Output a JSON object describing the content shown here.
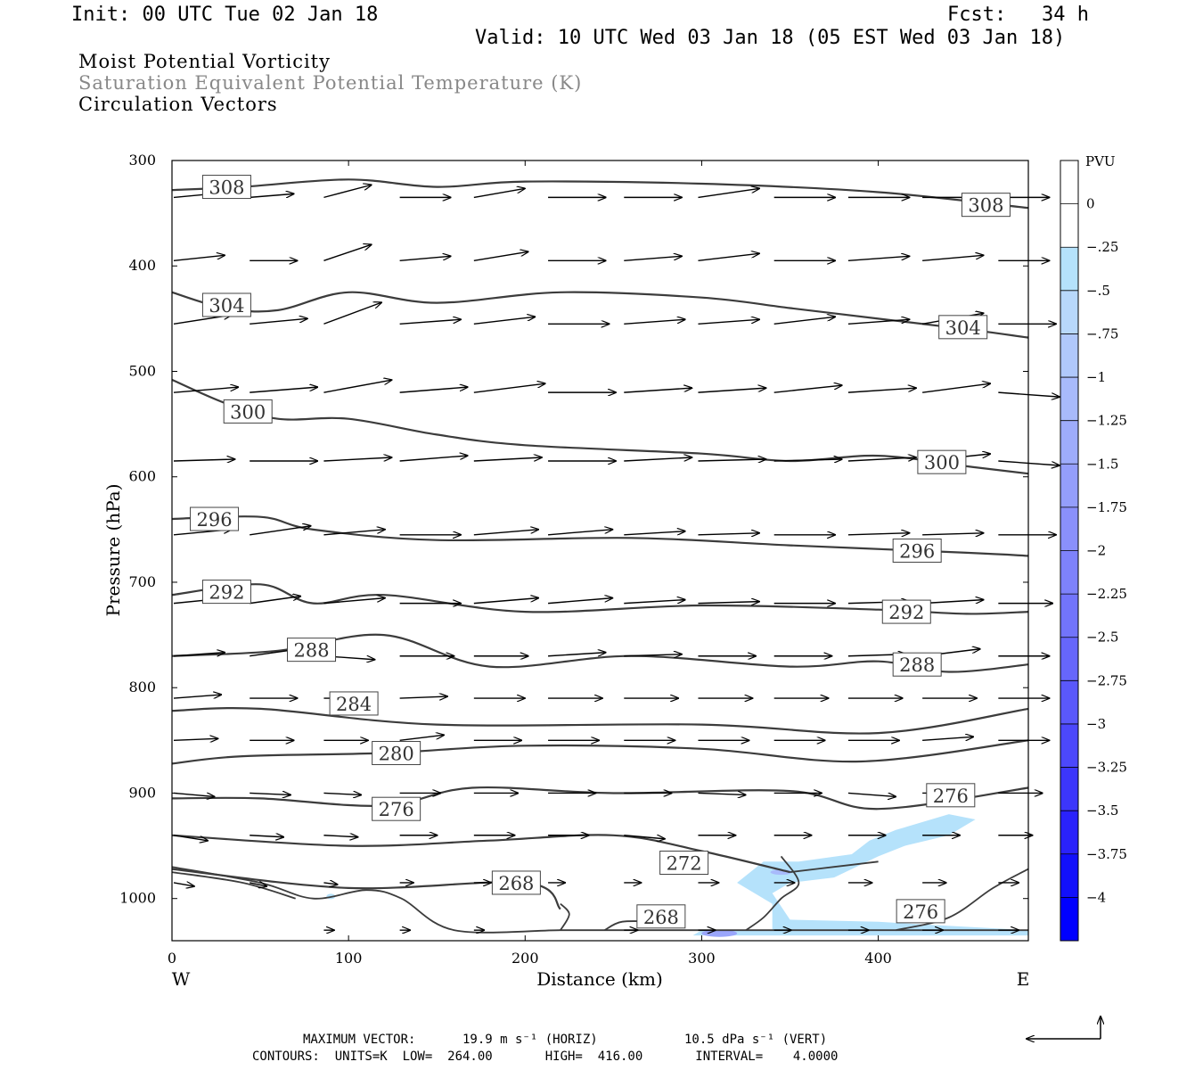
{
  "header": {
    "init": "Init: 00 UTC Tue 02 Jan 18",
    "fcst": "Fcst:   34 h",
    "valid": "Valid: 10 UTC Wed 03 Jan 18 (05 EST Wed 03 Jan 18)",
    "field1": "Moist Potential Vorticity",
    "field2": "Saturation Equivalent Potential Temperature (K)",
    "field3": "Circulation Vectors"
  },
  "footer": {
    "max_vector_label": "MAXIMUM VECTOR:",
    "horiz": "19.9 m s⁻¹ (HORIZ)",
    "vert": "10.5 dPa s⁻¹ (VERT)",
    "contours": "CONTOURS:  UNITS=K  LOW=  264.00       HIGH=  416.00       INTERVAL=    4.0000"
  },
  "colors": {
    "contour": "#3c3c3c",
    "pv_light": "#b5e2fb",
    "pv_dark": "#0000ff"
  },
  "chart_data": {
    "type": "cross-section",
    "xlabel": "Distance (km)",
    "ylabel": "Pressure (hPa)",
    "x_left_label": "W",
    "x_right_label": "E",
    "xlim": [
      0,
      485
    ],
    "ylim": [
      1040,
      300
    ],
    "x_ticks": [
      0,
      100,
      200,
      300,
      400
    ],
    "y_ticks": [
      300,
      400,
      500,
      600,
      700,
      800,
      900,
      1000
    ],
    "colorbar": {
      "title": "PVU",
      "levels": [
        "0",
        "-.25",
        "-.5",
        "-.75",
        "-1",
        "-1.25",
        "-1.5",
        "-1.75",
        "-2",
        "-2.25",
        "-2.5",
        "-2.75",
        "-3",
        "-3.25",
        "-3.5",
        "-3.75",
        "-4"
      ],
      "colors": [
        "#ffffff",
        "#ffffff",
        "#b5e2fb",
        "#b8d8fb",
        "#b0c8fb",
        "#a8bafb",
        "#9eacfb",
        "#949efb",
        "#8a90fb",
        "#7e82fb",
        "#7274fb",
        "#6666fb",
        "#5a58fb",
        "#4c48fb",
        "#3c36fb",
        "#2a22fb",
        "#1210fb",
        "#0000ff"
      ]
    },
    "contours": [
      {
        "value": 308,
        "label": "308",
        "points": [
          [
            0,
            328
          ],
          [
            40,
            325
          ],
          [
            100,
            318
          ],
          [
            150,
            325
          ],
          [
            200,
            320
          ],
          [
            300,
            322
          ],
          [
            400,
            330
          ],
          [
            485,
            345
          ]
        ],
        "labels_at": [
          [
            31,
            325
          ],
          [
            461,
            342
          ]
        ]
      },
      {
        "value": 304,
        "label": "304",
        "points": [
          [
            0,
            425
          ],
          [
            30,
            440
          ],
          [
            60,
            442
          ],
          [
            100,
            425
          ],
          [
            150,
            435
          ],
          [
            220,
            425
          ],
          [
            300,
            430
          ],
          [
            350,
            440
          ],
          [
            400,
            450
          ],
          [
            450,
            460
          ],
          [
            485,
            468
          ]
        ],
        "labels_at": [
          [
            31,
            437
          ],
          [
            448,
            458
          ]
        ]
      },
      {
        "value": 300,
        "label": "300",
        "points": [
          [
            0,
            508
          ],
          [
            30,
            530
          ],
          [
            60,
            545
          ],
          [
            100,
            545
          ],
          [
            150,
            560
          ],
          [
            200,
            570
          ],
          [
            300,
            578
          ],
          [
            350,
            585
          ],
          [
            400,
            580
          ],
          [
            450,
            590
          ],
          [
            485,
            597
          ]
        ],
        "labels_at": [
          [
            43,
            538
          ],
          [
            436,
            586
          ]
        ]
      },
      {
        "value": 296,
        "label": "296",
        "points": [
          [
            0,
            640
          ],
          [
            50,
            638
          ],
          [
            80,
            650
          ],
          [
            150,
            660
          ],
          [
            260,
            658
          ],
          [
            350,
            665
          ],
          [
            450,
            672
          ],
          [
            485,
            675
          ]
        ],
        "labels_at": [
          [
            24,
            640
          ],
          [
            422,
            670
          ]
        ]
      },
      {
        "value": 292,
        "label": "292",
        "points": [
          [
            0,
            712
          ],
          [
            50,
            702
          ],
          [
            80,
            720
          ],
          [
            120,
            712
          ],
          [
            200,
            728
          ],
          [
            300,
            722
          ],
          [
            400,
            726
          ],
          [
            450,
            730
          ],
          [
            485,
            728
          ]
        ],
        "labels_at": [
          [
            31,
            709
          ],
          [
            416,
            728
          ]
        ]
      },
      {
        "value": 288,
        "label": "288",
        "points": [
          [
            0,
            770
          ],
          [
            60,
            765
          ],
          [
            120,
            750
          ],
          [
            180,
            780
          ],
          [
            260,
            770
          ],
          [
            350,
            780
          ],
          [
            400,
            775
          ],
          [
            440,
            785
          ],
          [
            485,
            778
          ]
        ],
        "labels_at": [
          [
            79,
            764
          ],
          [
            422,
            778
          ]
        ]
      },
      {
        "value": 284,
        "label": "284",
        "points": [
          [
            0,
            822
          ],
          [
            50,
            820
          ],
          [
            150,
            835
          ],
          [
            300,
            835
          ],
          [
            400,
            843
          ],
          [
            485,
            820
          ]
        ],
        "labels_at": [
          [
            103,
            815
          ]
        ]
      },
      {
        "value": 280,
        "label": "280",
        "points": [
          [
            0,
            872
          ],
          [
            40,
            865
          ],
          [
            120,
            862
          ],
          [
            200,
            855
          ],
          [
            300,
            858
          ],
          [
            390,
            870
          ],
          [
            485,
            850
          ]
        ],
        "labels_at": [
          [
            127,
            862
          ]
        ]
      },
      {
        "value": 276,
        "label": "276",
        "points": [
          [
            0,
            905
          ],
          [
            50,
            905
          ],
          [
            120,
            912
          ],
          [
            170,
            895
          ],
          [
            250,
            900
          ],
          [
            350,
            898
          ],
          [
            400,
            915
          ],
          [
            485,
            895
          ]
        ],
        "labels_at": [
          [
            127,
            915
          ],
          [
            441,
            902
          ],
          [
            424,
            1012
          ]
        ]
      },
      {
        "value": 272,
        "label": "272",
        "points": [
          [
            0,
            940
          ],
          [
            100,
            950
          ],
          [
            180,
            945
          ],
          [
            250,
            940
          ],
          [
            300,
            955
          ],
          [
            350,
            975
          ]
        ],
        "labels_at": [
          [
            290,
            966
          ]
        ]
      },
      {
        "value": 268,
        "label": "268",
        "points": [
          [
            0,
            972
          ],
          [
            100,
            990
          ],
          [
            200,
            985
          ],
          [
            220,
            1010
          ]
        ],
        "labels_at": [
          [
            195,
            985
          ],
          [
            277,
            1017
          ]
        ]
      }
    ]
  }
}
